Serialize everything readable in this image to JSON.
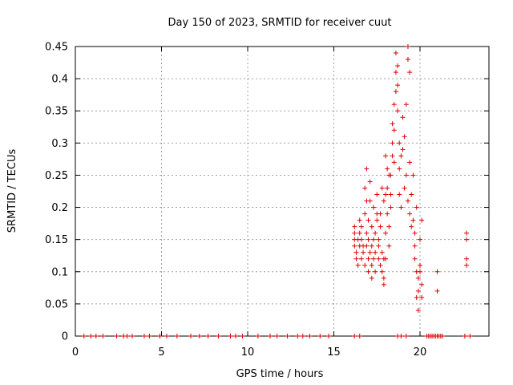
{
  "chart_data": {
    "type": "scatter",
    "title": "Day 150 of 2023, SRMTID for receiver cuut",
    "xlabel": "GPS time / hours",
    "ylabel": "SRMTID / TECUs",
    "xlim": [
      0,
      24
    ],
    "ylim": [
      0,
      0.45
    ],
    "xticks": [
      0,
      5,
      10,
      15,
      20
    ],
    "yticks": [
      0,
      0.05,
      0.1,
      0.15,
      0.2,
      0.25,
      0.3,
      0.35,
      0.4,
      0.45
    ],
    "xtick_labels": [
      "0",
      "5",
      "10",
      "15",
      "20"
    ],
    "ytick_labels": [
      "0",
      "0.05",
      "0.1",
      "0.15",
      "0.2",
      "0.25",
      "0.3",
      "0.35",
      "0.4",
      "0.45"
    ],
    "grid": true,
    "marker": "+",
    "color": "#e00000",
    "series": [
      {
        "points": [
          [
            0.5,
            0
          ],
          [
            0.9,
            0
          ],
          [
            1.2,
            0
          ],
          [
            1.6,
            0
          ],
          [
            2.4,
            0
          ],
          [
            2.8,
            0
          ],
          [
            3.0,
            0
          ],
          [
            3.3,
            0
          ],
          [
            4.0,
            0
          ],
          [
            4.3,
            0
          ],
          [
            4.9,
            0
          ],
          [
            5.3,
            0
          ],
          [
            5.9,
            0
          ],
          [
            6.7,
            0
          ],
          [
            7.2,
            0
          ],
          [
            7.7,
            0
          ],
          [
            8.3,
            0
          ],
          [
            9.0,
            0
          ],
          [
            9.3,
            0
          ],
          [
            9.7,
            0
          ],
          [
            10.6,
            0
          ],
          [
            11.3,
            0
          ],
          [
            11.7,
            0
          ],
          [
            12.3,
            0
          ],
          [
            12.9,
            0
          ],
          [
            13.2,
            0
          ],
          [
            13.6,
            0
          ],
          [
            14.2,
            0
          ],
          [
            14.7,
            0
          ],
          [
            16.2,
            0
          ],
          [
            16.5,
            0
          ],
          [
            18.7,
            0
          ],
          [
            18.9,
            0
          ],
          [
            19.2,
            0
          ],
          [
            20.4,
            0
          ],
          [
            20.5,
            0
          ],
          [
            20.6,
            0
          ],
          [
            20.7,
            0
          ],
          [
            20.8,
            0
          ],
          [
            20.9,
            0
          ],
          [
            21.0,
            0
          ],
          [
            21.1,
            0
          ],
          [
            21.2,
            0
          ],
          [
            21.3,
            0
          ],
          [
            22.6,
            0
          ],
          [
            22.9,
            0
          ],
          [
            16.2,
            0.17
          ],
          [
            16.2,
            0.16
          ],
          [
            16.2,
            0.15
          ],
          [
            16.2,
            0.14
          ],
          [
            16.3,
            0.13
          ],
          [
            16.3,
            0.12
          ],
          [
            16.4,
            0.11
          ],
          [
            16.4,
            0.15
          ],
          [
            16.5,
            0.18
          ],
          [
            16.5,
            0.16
          ],
          [
            16.5,
            0.14
          ],
          [
            16.6,
            0.12
          ],
          [
            16.6,
            0.15
          ],
          [
            16.6,
            0.17
          ],
          [
            16.7,
            0.14
          ],
          [
            16.7,
            0.13
          ],
          [
            16.8,
            0.11
          ],
          [
            16.8,
            0.19
          ],
          [
            16.8,
            0.23
          ],
          [
            16.9,
            0.26
          ],
          [
            16.9,
            0.21
          ],
          [
            16.9,
            0.16
          ],
          [
            16.9,
            0.14
          ],
          [
            17.0,
            0.1
          ],
          [
            17.0,
            0.12
          ],
          [
            17.0,
            0.15
          ],
          [
            17.0,
            0.18
          ],
          [
            17.1,
            0.21
          ],
          [
            17.1,
            0.24
          ],
          [
            17.1,
            0.13
          ],
          [
            17.2,
            0.09
          ],
          [
            17.2,
            0.11
          ],
          [
            17.2,
            0.14
          ],
          [
            17.2,
            0.17
          ],
          [
            17.3,
            0.2
          ],
          [
            17.3,
            0.15
          ],
          [
            17.3,
            0.12
          ],
          [
            17.4,
            0.1
          ],
          [
            17.4,
            0.13
          ],
          [
            17.4,
            0.16
          ],
          [
            17.5,
            0.19
          ],
          [
            17.5,
            0.22
          ],
          [
            17.5,
            0.18
          ],
          [
            17.6,
            0.15
          ],
          [
            17.6,
            0.12
          ],
          [
            17.6,
            0.14
          ],
          [
            17.7,
            0.17
          ],
          [
            17.7,
            0.19
          ],
          [
            17.7,
            0.11
          ],
          [
            17.8,
            0.1
          ],
          [
            17.8,
            0.13
          ],
          [
            17.8,
            0.23
          ],
          [
            17.9,
            0.21
          ],
          [
            17.9,
            0.12
          ],
          [
            17.9,
            0.09
          ],
          [
            17.9,
            0.08
          ],
          [
            18.0,
            0.12
          ],
          [
            18.0,
            0.16
          ],
          [
            18.0,
            0.22
          ],
          [
            18.0,
            0.28
          ],
          [
            18.1,
            0.26
          ],
          [
            18.1,
            0.23
          ],
          [
            18.1,
            0.19
          ],
          [
            18.2,
            0.25
          ],
          [
            18.2,
            0.17
          ],
          [
            18.2,
            0.14
          ],
          [
            18.3,
            0.2
          ],
          [
            18.3,
            0.22
          ],
          [
            18.3,
            0.25
          ],
          [
            18.4,
            0.28
          ],
          [
            18.4,
            0.3
          ],
          [
            18.4,
            0.33
          ],
          [
            18.5,
            0.36
          ],
          [
            18.5,
            0.32
          ],
          [
            18.5,
            0.27
          ],
          [
            18.6,
            0.38
          ],
          [
            18.6,
            0.41
          ],
          [
            18.6,
            0.44
          ],
          [
            18.7,
            0.42
          ],
          [
            18.7,
            0.39
          ],
          [
            18.7,
            0.35
          ],
          [
            18.8,
            0.3
          ],
          [
            18.8,
            0.26
          ],
          [
            18.8,
            0.22
          ],
          [
            18.9,
            0.2
          ],
          [
            18.9,
            0.28
          ],
          [
            19.0,
            0.34
          ],
          [
            19.0,
            0.29
          ],
          [
            19.1,
            0.23
          ],
          [
            19.1,
            0.31
          ],
          [
            19.2,
            0.36
          ],
          [
            19.2,
            0.25
          ],
          [
            19.3,
            0.21
          ],
          [
            19.3,
            0.45
          ],
          [
            19.3,
            0.43
          ],
          [
            19.4,
            0.41
          ],
          [
            19.4,
            0.27
          ],
          [
            19.4,
            0.19
          ],
          [
            19.5,
            0.17
          ],
          [
            19.5,
            0.22
          ],
          [
            19.6,
            0.25
          ],
          [
            19.6,
            0.18
          ],
          [
            19.7,
            0.16
          ],
          [
            19.7,
            0.14
          ],
          [
            19.7,
            0.12
          ],
          [
            19.8,
            0.2
          ],
          [
            19.8,
            0.1
          ],
          [
            19.8,
            0.06
          ],
          [
            19.9,
            0.04
          ],
          [
            19.9,
            0.07
          ],
          [
            19.9,
            0.09
          ],
          [
            20.0,
            0.11
          ],
          [
            20.0,
            0.15
          ],
          [
            20.0,
            0.1
          ],
          [
            20.1,
            0.08
          ],
          [
            20.1,
            0.18
          ],
          [
            20.1,
            0.06
          ],
          [
            21.0,
            0.1
          ],
          [
            21.0,
            0.07
          ],
          [
            22.7,
            0.16
          ],
          [
            22.7,
            0.15
          ],
          [
            22.7,
            0.12
          ],
          [
            22.7,
            0.11
          ]
        ]
      }
    ]
  }
}
